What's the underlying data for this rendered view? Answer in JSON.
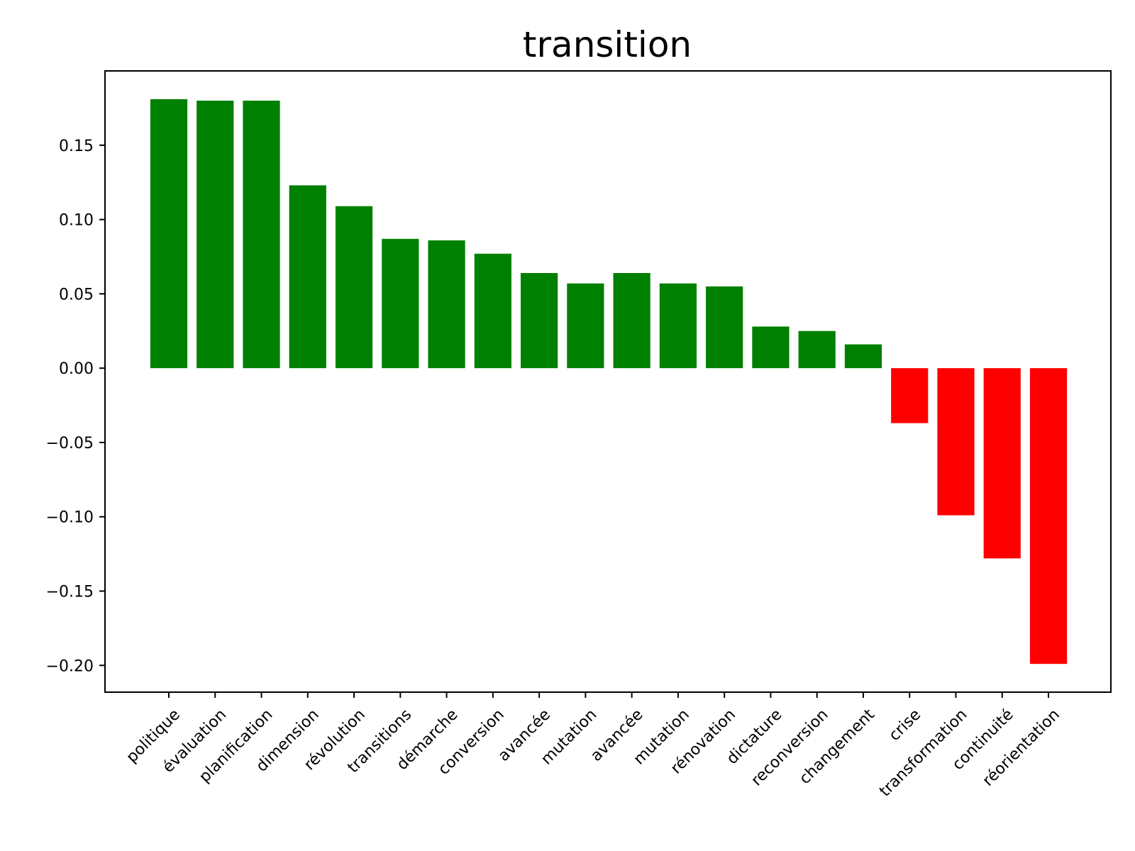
{
  "chart_data": {
    "type": "bar",
    "title": "transition",
    "xlabel": "",
    "ylabel": "",
    "categories": [
      "politique",
      "évaluation",
      "planification",
      "dimension",
      "révolution",
      "transitions",
      "démarche",
      "conversion",
      "avancée",
      "mutation",
      "avancée",
      "mutation",
      "rénovation",
      "dictature",
      "reconversion",
      "changement",
      "crise",
      "transformation",
      "continuité",
      "réorientation"
    ],
    "values": [
      0.181,
      0.18,
      0.18,
      0.123,
      0.109,
      0.087,
      0.086,
      0.077,
      0.064,
      0.057,
      0.064,
      0.057,
      0.055,
      0.028,
      0.025,
      0.016,
      -0.037,
      -0.099,
      -0.128,
      -0.199
    ],
    "colors": {
      "positive": "#008000",
      "negative": "#ff0000"
    },
    "ylim": [
      -0.218,
      0.2
    ],
    "yticks": [
      0.15,
      0.1,
      0.05,
      0.0,
      -0.05,
      -0.1,
      -0.15,
      -0.2
    ],
    "ytick_labels": [
      "0.15",
      "0.10",
      "0.05",
      "0.00",
      "−0.05",
      "−0.10",
      "−0.15",
      "−0.20"
    ],
    "grid": false,
    "legend": "none"
  }
}
